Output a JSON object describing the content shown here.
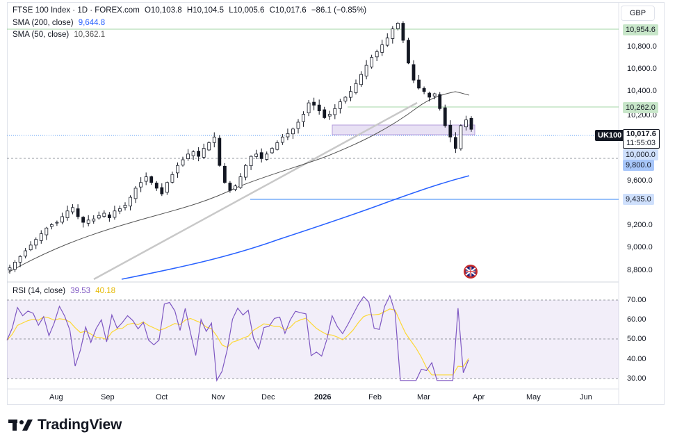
{
  "header": {
    "symbol": "FTSE 100 Index · 1D · FOREX.com",
    "open": "O10,103.8",
    "high": "H10,104.5",
    "low": "L10,005.6",
    "close": "C10,017.6",
    "change": "−86.1 (−0.85%)",
    "currency": "GBP"
  },
  "indicators": {
    "sma200_label": "SMA (200, close)",
    "sma200_value": "9,644.8",
    "sma50_label": "SMA (50, close)",
    "sma50_value": "10,362.1",
    "rsi_label": "RSI (14, close)",
    "rsi_value": "39.53",
    "rsi_ma_value": "40.18"
  },
  "price_axis": {
    "ticks": [
      "10,800.0",
      "10,600.0",
      "10,400.0",
      "10,200.0",
      "9,600.0",
      "9,200.0",
      "9,000.0",
      "8,800.0"
    ],
    "tags": {
      "high_level": "10,954.6",
      "resistance": "10,262.0",
      "symbol_tag": "UK100",
      "last_price": "10,017.6",
      "countdown": "11:55:03",
      "level_10000": "10,000.0",
      "level_9800": "9,800.0",
      "support": "9,435.0"
    }
  },
  "rsi_axis": {
    "ticks": [
      "70.00",
      "60.00",
      "50.00",
      "40.00",
      "30.00"
    ]
  },
  "time_axis": {
    "labels": [
      "Aug",
      "Sep",
      "Oct",
      "Nov",
      "Dec",
      "2026",
      "Feb",
      "Mar",
      "Apr",
      "May",
      "Jun"
    ]
  },
  "branding": {
    "logo_text": "TradingView"
  },
  "colors": {
    "up": "#131722",
    "down": "#131722",
    "sma200": "#2962ff",
    "sma50": "#555555",
    "rsi_line": "#7e57c2",
    "rsi_ma": "#fdd835",
    "rsi_band": "#7e57c2",
    "zone": "#b39ddb",
    "green_level": "#66bb6a",
    "blue_level": "#5b9cf6"
  },
  "chart_data": {
    "type": "candlestick",
    "instrument": "FTSE 100 Index",
    "timeframe": "1D",
    "price_range": [
      8700,
      11020
    ],
    "closes_approx": [
      8800,
      8850,
      8900,
      8950,
      9000,
      9050,
      9100,
      9150,
      9180,
      9200,
      9250,
      9300,
      9330,
      9250,
      9200,
      9220,
      9230,
      9260,
      9280,
      9240,
      9300,
      9320,
      9350,
      9420,
      9500,
      9550,
      9600,
      9550,
      9500,
      9450,
      9550,
      9620,
      9700,
      9750,
      9800,
      9820,
      9780,
      9850,
      9900,
      9950,
      9700,
      9550,
      9480,
      9520,
      9600,
      9700,
      9780,
      9800,
      9760,
      9800,
      9850,
      9900,
      9950,
      9980,
      10020,
      10080,
      10150,
      10250,
      10230,
      10180,
      10120,
      10150,
      10200,
      10260,
      10300,
      10350,
      10420,
      10500,
      10580,
      10650,
      10700,
      10760,
      10820,
      10900,
      10950,
      10800,
      10600,
      10450,
      10380,
      10350,
      10300,
      10330,
      10200,
      10050,
      9950,
      9850,
      10050,
      10100,
      10017.6
    ],
    "levels": [
      10954.6,
      10262.0,
      10000.0,
      9800.0,
      9435.0
    ],
    "rsi_range": [
      25,
      78
    ],
    "rsi_levels": [
      70,
      50,
      30
    ],
    "rsi_last": 39.53,
    "rsi_ma_last": 40.18,
    "x_labels": [
      "Aug",
      "Sep",
      "Oct",
      "Nov",
      "Dec",
      "2026",
      "Feb",
      "Mar",
      "Apr",
      "May",
      "Jun"
    ]
  }
}
